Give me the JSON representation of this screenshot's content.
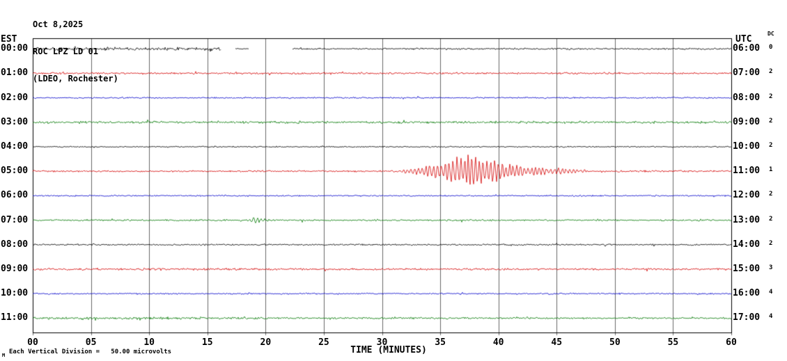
{
  "header": {
    "date": "Oct 8,2025",
    "station": "ROC LPZ LD 01",
    "location": "(LDEO, Rochester)"
  },
  "axis": {
    "left_tz": "EST",
    "right_tz": "UTC",
    "dc_label": "DC",
    "xlabel": "TIME (MINUTES)"
  },
  "footer": {
    "scale_note": "Each Vertical Division =   50.00 microvolts",
    "corner_mark": "M"
  },
  "chart_data": {
    "type": "line",
    "title": "ROC LPZ LD 01 helicorder, 12 hourly traces, Oct 8,2025",
    "xlabel": "TIME (MINUTES)",
    "x_range": [
      0,
      60
    ],
    "x_ticks": [
      0,
      5,
      10,
      15,
      20,
      25,
      30,
      35,
      40,
      45,
      50,
      55,
      60
    ],
    "x_tick_labels": [
      "00",
      "05",
      "10",
      "15",
      "20",
      "25",
      "30",
      "35",
      "40",
      "45",
      "50",
      "55",
      "60"
    ],
    "grid": true,
    "trace_colors": {
      "black": "#000000",
      "red": "#d40000",
      "blue": "#0000cc",
      "green": "#007700"
    },
    "amplitude_units": "microvolts",
    "vertical_division_microvolts": 50.0,
    "rows": [
      {
        "est": "00:00",
        "utc": "06:00",
        "dc": "0",
        "color": "black",
        "amp": 1.7,
        "segments": [
          [
            0,
            16.2,
            3.4
          ],
          [
            16.2,
            17.4,
            0
          ],
          [
            17.4,
            18.6,
            1.0
          ],
          [
            18.6,
            22.3,
            0
          ],
          [
            22.3,
            60,
            1.7
          ]
        ],
        "events": []
      },
      {
        "est": "01:00",
        "utc": "07:00",
        "dc": "2",
        "color": "red",
        "amp": 1.8,
        "events": []
      },
      {
        "est": "02:00",
        "utc": "08:00",
        "dc": "2",
        "color": "blue",
        "amp": 1.4,
        "events": []
      },
      {
        "est": "03:00",
        "utc": "09:00",
        "dc": "2",
        "color": "green",
        "amp": 2.3,
        "events": []
      },
      {
        "est": "04:00",
        "utc": "10:00",
        "dc": "2",
        "color": "black",
        "amp": 1.3,
        "events": []
      },
      {
        "est": "05:00",
        "utc": "11:00",
        "dc": "1",
        "color": "red",
        "amp": 1.6,
        "events": [
          {
            "start": 29.5,
            "peak": 37.4,
            "end": 47.5,
            "amp": 28
          }
        ]
      },
      {
        "est": "06:00",
        "utc": "12:00",
        "dc": "2",
        "color": "blue",
        "amp": 1.4,
        "events": []
      },
      {
        "est": "07:00",
        "utc": "13:00",
        "dc": "2",
        "color": "green",
        "amp": 1.7,
        "events": [
          {
            "start": 17.7,
            "peak": 18.9,
            "end": 21.3,
            "amp": 4.5
          }
        ]
      },
      {
        "est": "08:00",
        "utc": "14:00",
        "dc": "2",
        "color": "black",
        "amp": 1.5,
        "events": []
      },
      {
        "est": "09:00",
        "utc": "15:00",
        "dc": "3",
        "color": "red",
        "amp": 2.0,
        "events": []
      },
      {
        "est": "10:00",
        "utc": "16:00",
        "dc": "4",
        "color": "blue",
        "amp": 1.5,
        "events": []
      },
      {
        "est": "11:00",
        "utc": "17:00",
        "dc": "4",
        "color": "green",
        "amp": 2.0,
        "segments": [
          [
            0,
            20,
            2.4
          ],
          [
            20,
            60,
            1.8
          ]
        ],
        "events": []
      }
    ]
  }
}
